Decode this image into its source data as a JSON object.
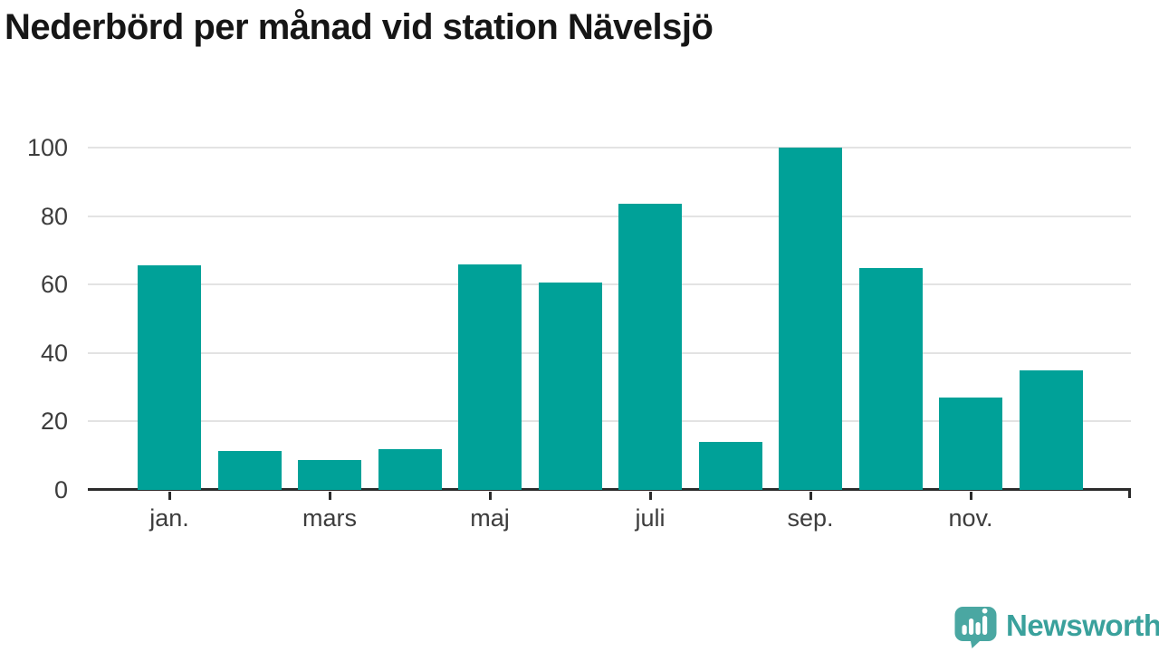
{
  "title": "Nederbörd per månad vid station Nävelsjö",
  "chart_data": {
    "type": "bar",
    "title": "Nederbörd per månad vid station Nävelsjö",
    "values": [
      65.6,
      11.5,
      8.6,
      11.8,
      65.8,
      60.5,
      83.6,
      13.9,
      99.9,
      64.9,
      26.9,
      34.8
    ],
    "x_tick_labels": [
      "jan.",
      "mars",
      "maj",
      "juli",
      "sep.",
      "nov."
    ],
    "x_label_every": 2,
    "y_ticks": [
      0,
      20,
      40,
      60,
      80,
      100
    ],
    "ylim": [
      0,
      100
    ],
    "grid": true,
    "legend_position": "none",
    "bar_color": "#00a198",
    "gridline_color": "#e3e3e3",
    "axis_color": "#2b2b2b",
    "tick_label_color": "#3d3d3d"
  },
  "branding": {
    "logo_text": "Newsworthy",
    "logo_text_color": "#3aa19c",
    "logo_bubble_color": "#4aa7a2",
    "logo_glyph_color": "#ffffff",
    "logo_icon": "speech-bubble-bar-chart-exclamation"
  }
}
